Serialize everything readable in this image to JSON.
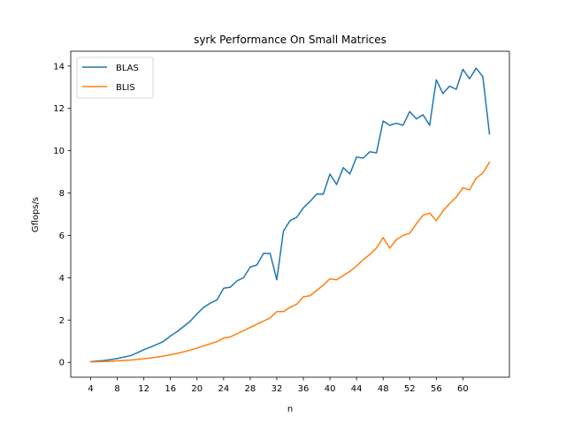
{
  "chart_data": {
    "type": "line",
    "title": "syrk Performance On Small Matrices",
    "xlabel": "n",
    "ylabel": "Gflops/s",
    "xlim": [
      1,
      67
    ],
    "ylim": [
      -0.7,
      14.7
    ],
    "xticks": [
      4,
      8,
      12,
      16,
      20,
      24,
      28,
      32,
      36,
      40,
      44,
      48,
      52,
      56,
      60
    ],
    "yticks": [
      0,
      2,
      4,
      6,
      8,
      10,
      12,
      14
    ],
    "grid": false,
    "legend": "top-left",
    "x": [
      4,
      5,
      6,
      7,
      8,
      9,
      10,
      11,
      12,
      13,
      14,
      15,
      16,
      17,
      18,
      19,
      20,
      21,
      22,
      23,
      24,
      25,
      26,
      27,
      28,
      29,
      30,
      31,
      32,
      33,
      34,
      35,
      36,
      37,
      38,
      39,
      40,
      41,
      42,
      43,
      44,
      45,
      46,
      47,
      48,
      49,
      50,
      51,
      52,
      53,
      54,
      55,
      56,
      57,
      58,
      59,
      60,
      61,
      62,
      63,
      64
    ],
    "series": [
      {
        "name": "BLAS",
        "color": "#1f77b4",
        "values": [
          0.03,
          0.06,
          0.09,
          0.13,
          0.18,
          0.25,
          0.32,
          0.45,
          0.6,
          0.72,
          0.85,
          1.0,
          1.25,
          1.45,
          1.7,
          1.95,
          2.3,
          2.6,
          2.8,
          2.95,
          3.5,
          3.55,
          3.85,
          4.0,
          4.5,
          4.6,
          5.15,
          5.15,
          3.9,
          6.2,
          6.7,
          6.85,
          7.3,
          7.6,
          7.95,
          7.95,
          8.9,
          8.4,
          9.2,
          8.9,
          9.7,
          9.65,
          9.95,
          9.9,
          11.4,
          11.2,
          11.3,
          11.2,
          11.85,
          11.5,
          11.7,
          11.2,
          13.35,
          12.7,
          13.05,
          12.9,
          13.85,
          13.4,
          13.9,
          13.5,
          10.8
        ]
      },
      {
        "name": "BLIS",
        "color": "#ff7f0e",
        "values": [
          0.02,
          0.03,
          0.04,
          0.05,
          0.07,
          0.09,
          0.11,
          0.14,
          0.17,
          0.21,
          0.25,
          0.3,
          0.36,
          0.42,
          0.5,
          0.58,
          0.68,
          0.78,
          0.88,
          0.98,
          1.15,
          1.2,
          1.35,
          1.5,
          1.65,
          1.8,
          1.95,
          2.1,
          2.4,
          2.4,
          2.6,
          2.75,
          3.1,
          3.15,
          3.4,
          3.65,
          3.95,
          3.9,
          4.1,
          4.3,
          4.55,
          4.85,
          5.1,
          5.4,
          5.9,
          5.4,
          5.8,
          6.0,
          6.1,
          6.55,
          6.95,
          7.05,
          6.7,
          7.15,
          7.5,
          7.8,
          8.25,
          8.15,
          8.7,
          8.95,
          9.45
        ]
      }
    ]
  }
}
